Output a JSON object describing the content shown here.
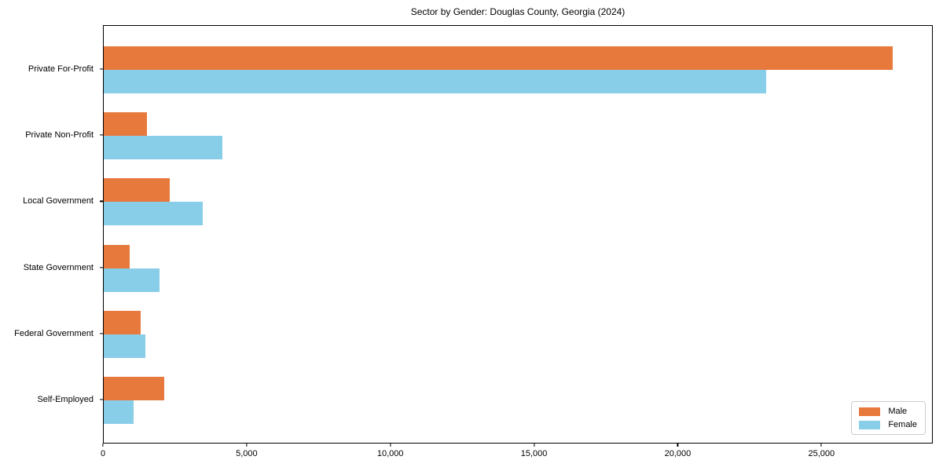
{
  "chart_data": {
    "type": "bar",
    "orientation": "horizontal",
    "title": "Sector by Gender: Douglas County, Georgia (2024)",
    "categories": [
      "Private For-Profit",
      "Private Non-Profit",
      "Local Government",
      "State Government",
      "Federal Government",
      "Self-Employed"
    ],
    "series": [
      {
        "name": "Male",
        "color": "#E8793D",
        "values": [
          27500,
          1500,
          2300,
          900,
          1300,
          2100
        ]
      },
      {
        "name": "Female",
        "color": "#89CEE8",
        "values": [
          23100,
          4150,
          3450,
          1950,
          1450,
          1050
        ]
      }
    ],
    "xlabel": "",
    "ylabel": "",
    "xlim": [
      0,
      28875
    ],
    "x_ticks": [
      0,
      5000,
      10000,
      15000,
      20000,
      25000
    ],
    "x_tick_labels": [
      "0",
      "5,000",
      "10,000",
      "15,000",
      "20,000",
      "25,000"
    ],
    "grid": false,
    "legend_position": "lower-right"
  },
  "colors": {
    "male": "#E8793D",
    "female": "#89CEE8",
    "spine": "#000000",
    "legend_border": "#cccccc",
    "background": "#ffffff"
  },
  "legend": {
    "items": [
      {
        "label": "Male"
      },
      {
        "label": "Female"
      }
    ]
  }
}
